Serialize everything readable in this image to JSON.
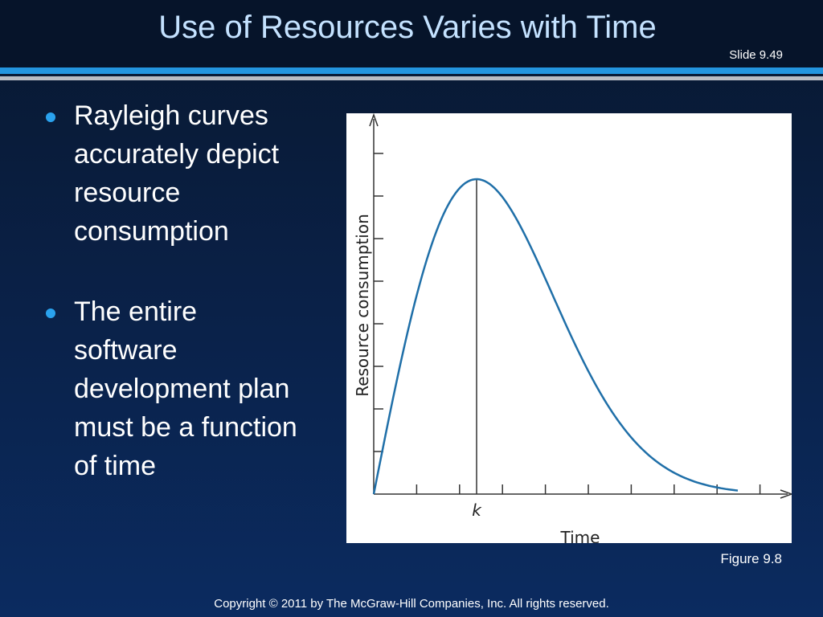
{
  "header": {
    "title": "Use of Resources Varies with Time",
    "slide_number": "Slide 9.49"
  },
  "bullets": [
    "Rayleigh curves accurately depict resource consumption",
    "The entire software development plan must be a function of time"
  ],
  "figure": {
    "y_label": "Resource consumption",
    "x_marker": "k",
    "x_label": "Time",
    "caption": "Figure 9.8"
  },
  "footer": {
    "copyright": "Copyright © 2011 by The McGraw-Hill Companies, Inc.  All rights reserved."
  }
}
